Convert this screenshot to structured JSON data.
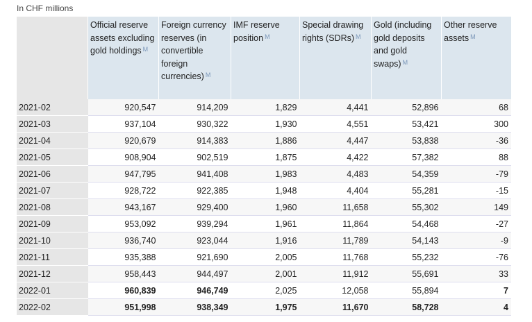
{
  "caption": "In CHF millions",
  "footnote_marker": "M",
  "columns": [
    "Official reserve assets excluding gold holdings",
    "Foreign currency reserves (in convertible foreign currencies)",
    "IMF reserve position",
    "Special drawing rights (SDRs)",
    "Gold (including gold deposits and gold swaps)",
    "Other reserve assets"
  ],
  "rows": [
    {
      "period": "2021-02",
      "values": [
        "920,547",
        "914,209",
        "1,829",
        "4,441",
        "52,896",
        "68"
      ],
      "bold": [
        false,
        false,
        false,
        false,
        false,
        false
      ]
    },
    {
      "period": "2021-03",
      "values": [
        "937,104",
        "930,322",
        "1,930",
        "4,551",
        "53,421",
        "300"
      ],
      "bold": [
        false,
        false,
        false,
        false,
        false,
        false
      ]
    },
    {
      "period": "2021-04",
      "values": [
        "920,679",
        "914,383",
        "1,886",
        "4,447",
        "53,838",
        "-36"
      ],
      "bold": [
        false,
        false,
        false,
        false,
        false,
        false
      ]
    },
    {
      "period": "2021-05",
      "values": [
        "908,904",
        "902,519",
        "1,875",
        "4,422",
        "57,382",
        "88"
      ],
      "bold": [
        false,
        false,
        false,
        false,
        false,
        false
      ]
    },
    {
      "period": "2021-06",
      "values": [
        "947,795",
        "941,408",
        "1,983",
        "4,483",
        "54,359",
        "-79"
      ],
      "bold": [
        false,
        false,
        false,
        false,
        false,
        false
      ]
    },
    {
      "period": "2021-07",
      "values": [
        "928,722",
        "922,385",
        "1,948",
        "4,404",
        "55,281",
        "-15"
      ],
      "bold": [
        false,
        false,
        false,
        false,
        false,
        false
      ]
    },
    {
      "period": "2021-08",
      "values": [
        "943,167",
        "929,400",
        "1,960",
        "11,658",
        "55,302",
        "149"
      ],
      "bold": [
        false,
        false,
        false,
        false,
        false,
        false
      ]
    },
    {
      "period": "2021-09",
      "values": [
        "953,092",
        "939,294",
        "1,961",
        "11,864",
        "54,468",
        "-27"
      ],
      "bold": [
        false,
        false,
        false,
        false,
        false,
        false
      ]
    },
    {
      "period": "2021-10",
      "values": [
        "936,740",
        "923,044",
        "1,916",
        "11,789",
        "54,143",
        "-9"
      ],
      "bold": [
        false,
        false,
        false,
        false,
        false,
        false
      ]
    },
    {
      "period": "2021-11",
      "values": [
        "935,388",
        "921,690",
        "2,005",
        "11,768",
        "55,232",
        "-76"
      ],
      "bold": [
        false,
        false,
        false,
        false,
        false,
        false
      ]
    },
    {
      "period": "2021-12",
      "values": [
        "958,443",
        "944,497",
        "2,001",
        "11,912",
        "55,691",
        "33"
      ],
      "bold": [
        false,
        false,
        false,
        false,
        false,
        false
      ]
    },
    {
      "period": "2022-01",
      "values": [
        "960,839",
        "946,749",
        "2,025",
        "12,058",
        "55,894",
        "7"
      ],
      "bold": [
        true,
        true,
        false,
        false,
        false,
        true
      ]
    },
    {
      "period": "2022-02",
      "values": [
        "951,998",
        "938,349",
        "1,975",
        "11,670",
        "58,728",
        "4"
      ],
      "bold": [
        true,
        true,
        true,
        true,
        true,
        true
      ]
    }
  ]
}
